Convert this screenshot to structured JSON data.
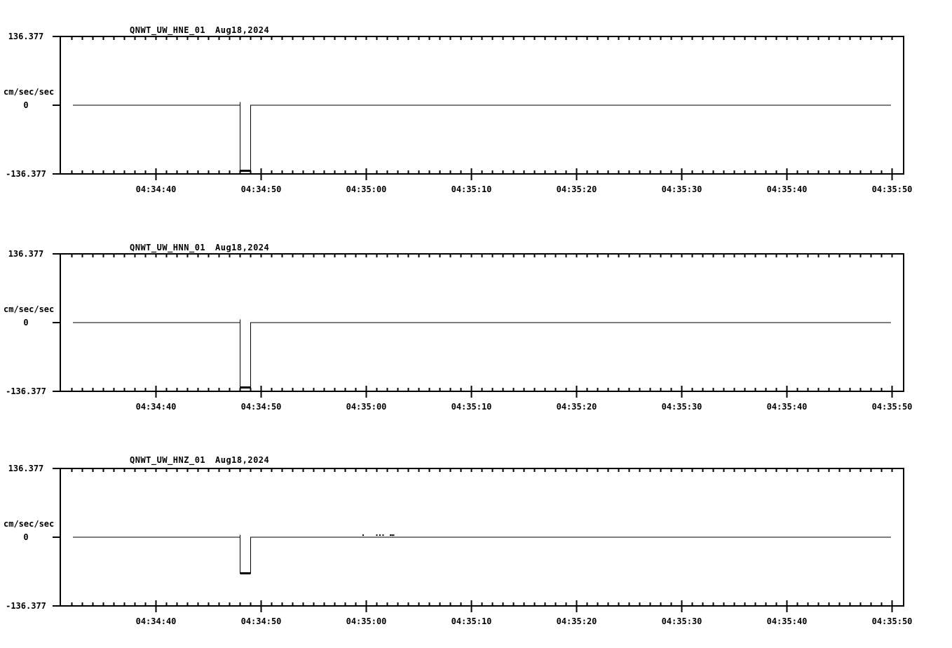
{
  "figure": {
    "background_color": "#ffffff",
    "ink_color": "#000000"
  },
  "chart_data": [
    {
      "id": "hne",
      "type": "line",
      "title": "QNWT_UW_HNE_01",
      "date_label": "Aug18,2024",
      "ylabel": "cm/sec/sec",
      "ylim": [
        -136.377,
        136.377
      ],
      "yticks": [
        {
          "value": 136.377,
          "label": "136.377"
        },
        {
          "value": 0,
          "label": "0"
        },
        {
          "value": -136.377,
          "label": "-136.377"
        }
      ],
      "x_unit": "seconds after 04:34:00",
      "xlim_seconds": [
        30.9,
        111.1
      ],
      "minor_tick_interval_s": 1,
      "xticks": [
        {
          "t": 40,
          "label": "04:34:40"
        },
        {
          "t": 50,
          "label": "04:34:50"
        },
        {
          "t": 60,
          "label": "04:35:00"
        },
        {
          "t": 70,
          "label": "04:35:10"
        },
        {
          "t": 80,
          "label": "04:35:20"
        },
        {
          "t": 90,
          "label": "04:35:30"
        },
        {
          "t": 100,
          "label": "04:35:40"
        },
        {
          "t": 110,
          "label": "04:35:50"
        }
      ],
      "trace": {
        "baseline_value": 0,
        "points": [
          [
            32.1,
            0
          ],
          [
            48,
            0
          ],
          [
            48,
            6
          ],
          [
            48,
            -130
          ],
          [
            49,
            -130
          ],
          [
            49,
            0
          ],
          [
            109.9,
            0
          ]
        ],
        "emphasis_segment": {
          "t0": 48,
          "t1": 49,
          "value": -130
        },
        "noise_points": []
      }
    },
    {
      "id": "hnn",
      "type": "line",
      "title": "QNWT_UW_HNN_01",
      "date_label": "Aug18,2024",
      "ylabel": "cm/sec/sec",
      "ylim": [
        -136.377,
        136.377
      ],
      "yticks": [
        {
          "value": 136.377,
          "label": "136.377"
        },
        {
          "value": 0,
          "label": "0"
        },
        {
          "value": -136.377,
          "label": "-136.377"
        }
      ],
      "x_unit": "seconds after 04:34:00",
      "xlim_seconds": [
        30.9,
        111.1
      ],
      "minor_tick_interval_s": 1,
      "xticks": [
        {
          "t": 40,
          "label": "04:34:40"
        },
        {
          "t": 50,
          "label": "04:34:50"
        },
        {
          "t": 60,
          "label": "04:35:00"
        },
        {
          "t": 70,
          "label": "04:35:10"
        },
        {
          "t": 80,
          "label": "04:35:20"
        },
        {
          "t": 90,
          "label": "04:35:30"
        },
        {
          "t": 100,
          "label": "04:35:40"
        },
        {
          "t": 110,
          "label": "04:35:50"
        }
      ],
      "trace": {
        "baseline_value": 0,
        "points": [
          [
            32.1,
            0
          ],
          [
            48,
            0
          ],
          [
            48,
            6
          ],
          [
            48,
            -129
          ],
          [
            49,
            -129
          ],
          [
            49,
            0
          ],
          [
            109.9,
            0
          ]
        ],
        "emphasis_segment": {
          "t0": 48,
          "t1": 49,
          "value": -129
        },
        "noise_points": []
      }
    },
    {
      "id": "hnz",
      "type": "line",
      "title": "QNWT_UW_HNZ_01",
      "date_label": "Aug18,2024",
      "ylabel": "cm/sec/sec",
      "ylim": [
        -136.377,
        136.377
      ],
      "yticks": [
        {
          "value": 136.377,
          "label": "136.377"
        },
        {
          "value": 0,
          "label": "0"
        },
        {
          "value": -136.377,
          "label": "-136.377"
        }
      ],
      "x_unit": "seconds after 04:34:00",
      "xlim_seconds": [
        30.9,
        111.1
      ],
      "minor_tick_interval_s": 1,
      "xticks": [
        {
          "t": 40,
          "label": "04:34:40"
        },
        {
          "t": 50,
          "label": "04:34:50"
        },
        {
          "t": 60,
          "label": "04:35:00"
        },
        {
          "t": 70,
          "label": "04:35:10"
        },
        {
          "t": 80,
          "label": "04:35:20"
        },
        {
          "t": 90,
          "label": "04:35:30"
        },
        {
          "t": 100,
          "label": "04:35:40"
        },
        {
          "t": 110,
          "label": "04:35:50"
        }
      ],
      "trace": {
        "baseline_value": 0,
        "points": [
          [
            32.1,
            0
          ],
          [
            48,
            0
          ],
          [
            48,
            5
          ],
          [
            48,
            -72
          ],
          [
            49,
            -72
          ],
          [
            49,
            0
          ],
          [
            109.9,
            0
          ]
        ],
        "emphasis_segment": {
          "t0": 48,
          "t1": 49,
          "value": -72
        },
        "noise_points": [
          {
            "t": 59.7,
            "value": 4
          },
          {
            "t": 61.0,
            "value": 4
          },
          {
            "t": 61.3,
            "value": 4
          },
          {
            "t": 61.6,
            "value": 4
          },
          {
            "t": 62.3,
            "value": 4
          },
          {
            "t": 62.45,
            "value": 4
          },
          {
            "t": 62.6,
            "value": 4
          }
        ]
      }
    }
  ]
}
